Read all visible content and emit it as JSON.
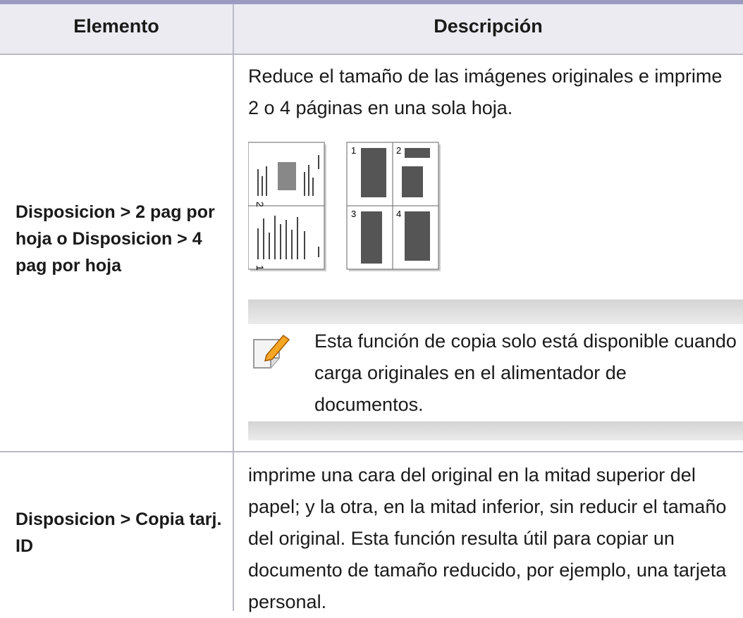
{
  "table": {
    "header": [
      "Elemento",
      "Descripción"
    ],
    "rows": [
      {
        "item": "Disposicion > 2 pag por hoja o Disposicion > 4 pag por hoja",
        "description": "Reduce el tamaño de las imágenes originales e imprime 2 o 4 páginas en una sola hoja.",
        "figure": {
          "two_up": [
            "2",
            "1"
          ],
          "four_up": [
            "1",
            "2",
            "3",
            "4"
          ]
        },
        "note": "Esta función de copia solo está disponible cuando carga originales en el alimentador de documentos."
      },
      {
        "item": "Disposicion > Copia tarj. ID",
        "description": "imprime una cara del original en la mitad superior del papel; y la otra, en la mitad inferior, sin reducir el tamaño del original. Esta función resulta útil para copiar un documento de tamaño reducido, por ejemplo, una tarjeta personal."
      }
    ]
  }
}
